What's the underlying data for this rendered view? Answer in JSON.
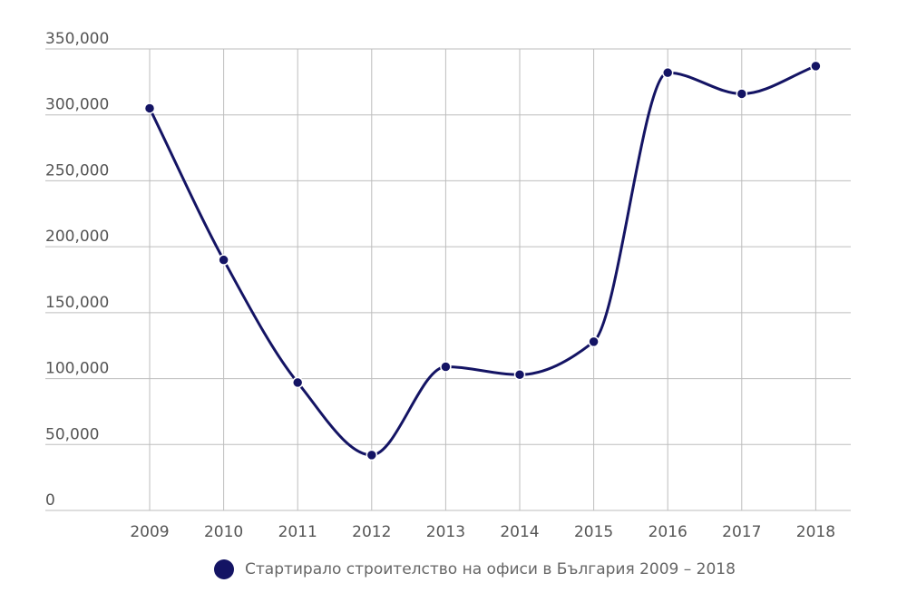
{
  "chart_data": {
    "type": "line",
    "title": "",
    "xlabel": "",
    "ylabel": "",
    "categories": [
      "2009",
      "2010",
      "2011",
      "2012",
      "2013",
      "2014",
      "2015",
      "2016",
      "2017",
      "2018"
    ],
    "series": [
      {
        "name": "Стартирало строителство на офиси в България 2009 – 2018",
        "values": [
          305000,
          190000,
          97000,
          42000,
          109000,
          103000,
          128000,
          332000,
          316000,
          337000
        ],
        "color": "#141464"
      }
    ],
    "ylim": [
      0,
      350000
    ],
    "yticks": [
      0,
      50000,
      100000,
      150000,
      200000,
      250000,
      300000,
      350000
    ],
    "ytick_labels": [
      "0",
      "50,000",
      "100,000",
      "150,000",
      "200,000",
      "250,000",
      "300,000",
      "350,000"
    ],
    "grid": true,
    "legend_position": "bottom",
    "smooth": true
  }
}
